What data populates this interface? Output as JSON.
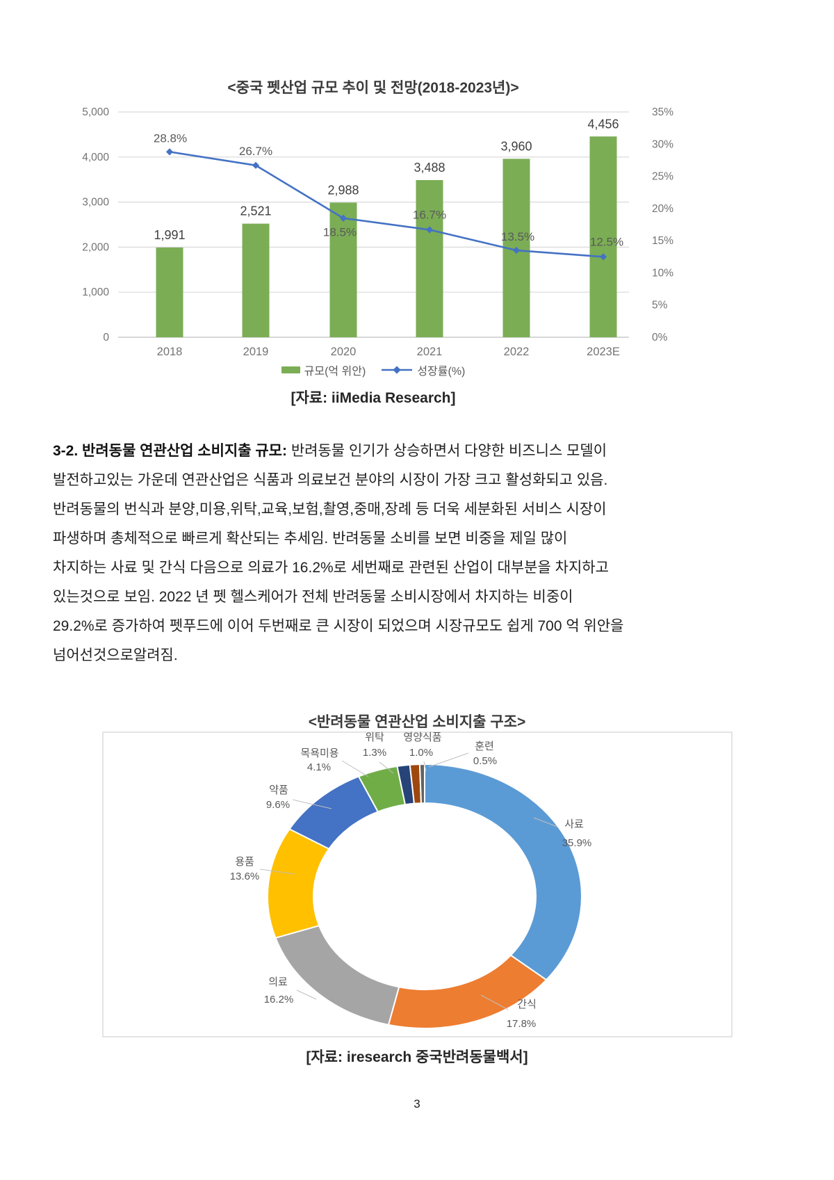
{
  "page": {
    "number": "3"
  },
  "paragraph": {
    "bold_lead": "3-2. 반려동물 연관산업 소비지출 규모:",
    "lines": [
      "반려동물 인기가 상승하면서 다양한 비즈니스 모델이",
      "발전하고있는 가운데 연관산업은 식품과 의료보건 분야의 시장이 가장 크고 활성화되고 있음.",
      "반려동물의 번식과 분양,미용,위탁,교육,보험,촬영,중매,장례 등 더욱 세분화된 서비스 시장이",
      "파생하며 총체적으로 빠르게 확산되는 추세임. 반려동물 소비를 보면 비중을 제일 많이",
      "차지하는 사료 및 간식 다음으로 의료가 16.2%로 세번째로 관련된 산업이 대부분을 차지하고",
      "있는것으로 보임. 2022 년 펫 헬스케어가 전체 반려동물 소비시장에서 차지하는 비중이",
      "29.2%로 증가하여 펫푸드에 이어 두번째로 큰 시장이 되었으며 시장규모도 쉽게 700 억 위안을",
      "넘어선것으로알려짐."
    ]
  },
  "chart_data": [
    {
      "type": "bar",
      "subtype": "bar+line-combo",
      "title": "<중국 펫산업 규모 추이 및 전망(2018-2023년)>",
      "categories": [
        "2018",
        "2019",
        "2020",
        "2021",
        "2022",
        "2023E"
      ],
      "series": [
        {
          "name": "규모(억 위안)",
          "type": "bar",
          "axis": "left",
          "color": "#7bad55",
          "values": [
            1991,
            2521,
            2988,
            3488,
            3960,
            4456
          ],
          "labels": [
            "1,991",
            "2,521",
            "2,988",
            "3,488",
            "3,960",
            "4,456"
          ]
        },
        {
          "name": "성장률(%)",
          "type": "line",
          "axis": "right",
          "color": "#4472c4",
          "values": [
            28.8,
            26.7,
            18.5,
            16.7,
            13.5,
            12.5
          ],
          "labels": [
            "28.8%",
            "26.7%",
            "18.5%",
            "16.7%",
            "13.5%",
            "12.5%"
          ]
        }
      ],
      "left_axis": {
        "min": 0,
        "max": 5000,
        "ticks": [
          "5,000",
          "4,000",
          "3,000",
          "2,000",
          "1,000",
          "0"
        ]
      },
      "right_axis": {
        "min": 0,
        "max": 35,
        "ticks": [
          "35%",
          "30%",
          "25%",
          "20%",
          "15%",
          "10%",
          "5%",
          "0%"
        ]
      },
      "grid": true,
      "legend_position": "bottom",
      "source": "[자료: iiMedia Research]"
    },
    {
      "type": "pie",
      "subtype": "donut",
      "title": "<반려동물 연관산업 소비지출 구조>",
      "slices": [
        {
          "label": "사료",
          "pct": 35.9,
          "pct_label": "35.9%",
          "color": "#5b9bd5"
        },
        {
          "label": "간식",
          "pct": 17.8,
          "pct_label": "17.8%",
          "color": "#ed7d31"
        },
        {
          "label": "의료",
          "pct": 16.2,
          "pct_label": "16.2%",
          "color": "#a5a5a5"
        },
        {
          "label": "용품",
          "pct": 13.6,
          "pct_label": "13.6%",
          "color": "#ffc000"
        },
        {
          "label": "약품",
          "pct": 9.6,
          "pct_label": "9.6%",
          "color": "#4472c4"
        },
        {
          "label": "목욕미용",
          "pct": 4.1,
          "pct_label": "4.1%",
          "color": "#70ad47"
        },
        {
          "label": "위탁",
          "pct": 1.3,
          "pct_label": "1.3%",
          "color": "#264478"
        },
        {
          "label": "영양식품",
          "pct": 1.0,
          "pct_label": "1.0%",
          "color": "#9e480e"
        },
        {
          "label": "훈련",
          "pct": 0.5,
          "pct_label": "0.5%",
          "color": "#636363"
        }
      ],
      "legend_position": "none",
      "source": "[자료: iresearch 중국반려동물백서]"
    }
  ],
  "colors": {
    "bar_green": "#7bad55",
    "line_blue": "#4472c4",
    "axis_text": "#737373",
    "gridline": "#d9d9d9",
    "label_gray": "#595959",
    "frame_border": "#d9d9d9"
  }
}
